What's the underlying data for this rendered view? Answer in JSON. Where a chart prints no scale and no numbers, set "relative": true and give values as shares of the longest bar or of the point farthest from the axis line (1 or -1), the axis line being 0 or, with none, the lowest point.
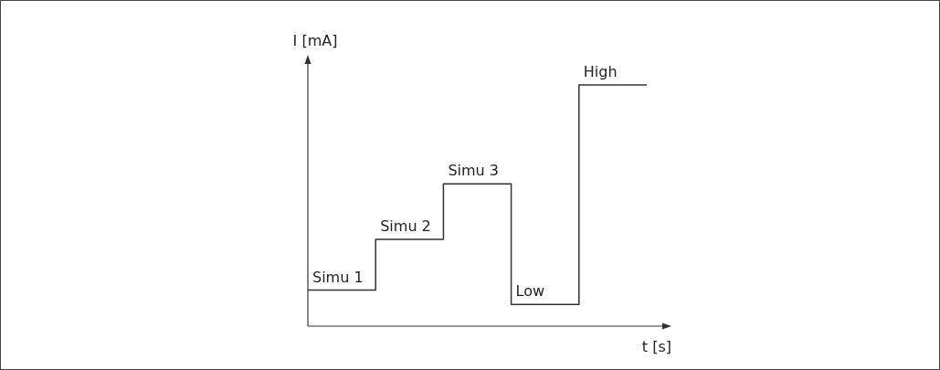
{
  "chart_data": {
    "type": "step",
    "relative": true,
    "xlabel": "t [s]",
    "ylabel": "I [mA]",
    "categories": [
      null,
      null,
      null,
      null,
      null,
      null
    ],
    "values": [
      0.15,
      0.36,
      0.59,
      0.09,
      1,
      1
    ],
    "color": "#333333",
    "annotations": [
      "Simu 1",
      "Simu 2",
      "Simu 3",
      "Low",
      "High"
    ]
  }
}
